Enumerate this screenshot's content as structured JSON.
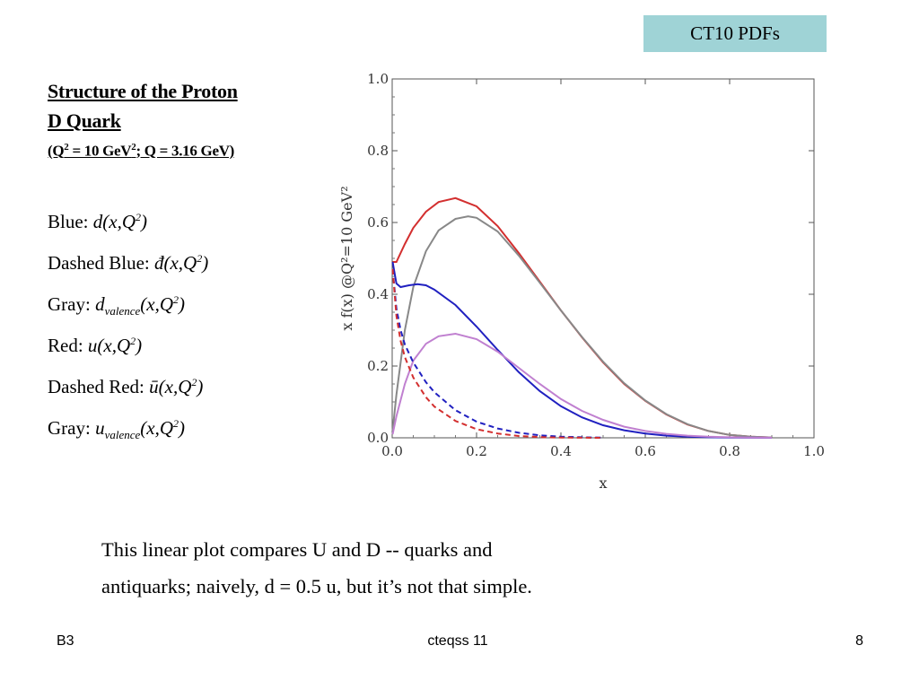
{
  "slide": {
    "tag": "CT10 PDFs",
    "tag_color": "#9fd3d6",
    "heading": {
      "line1": "Structure of the Proton",
      "line2": "D Quark",
      "line3_open": "(Q",
      "line3_sup1": "2",
      "line3_mid": " = 10 GeV",
      "line3_sup2": "2",
      "line3_close": "; Q = 3.16 GeV)"
    },
    "legend": [
      {
        "label": "Blue:",
        "expr": "d(x,Q",
        "sub": "",
        "sup": "2",
        "close": ")"
      },
      {
        "label": "Dashed Blue:",
        "expr": "đ(x,Q",
        "sub": "",
        "sup": "2",
        "close": ")"
      },
      {
        "label": "Gray:",
        "expr": "d",
        "sub": "valence",
        "mid": "(x,Q",
        "sup": "2",
        "close": ")"
      },
      {
        "label": "Red:",
        "expr": "u(x,Q",
        "sub": "",
        "sup": "2",
        "close": ")"
      },
      {
        "label": "Dashed Red:",
        "expr": "ū(x,Q",
        "sub": "",
        "sup": "2",
        "close": ")"
      },
      {
        "label": "Gray:",
        "expr": "u",
        "sub": "valence",
        "mid": "(x,Q",
        "sup": "2",
        "close": ")"
      }
    ],
    "caption": {
      "line1": "This linear plot  compares U and D -- quarks and",
      "line2": "antiquarks; naively, d = 0.5 u, but it’s not that simple."
    },
    "footer": {
      "left": "B3",
      "center": "cteqss 11",
      "right": "8"
    }
  },
  "chart_data": {
    "type": "line",
    "xlabel": "x",
    "ylabel": "x f(x)    @Q²=10 GeV²",
    "xlim": [
      0,
      1
    ],
    "ylim": [
      0,
      1
    ],
    "xticks": [
      "0.0",
      "0.2",
      "0.4",
      "0.6",
      "0.8",
      "1.0"
    ],
    "yticks": [
      "0.0",
      "0.2",
      "0.4",
      "0.6",
      "0.8",
      "1.0"
    ],
    "grid": false,
    "series": [
      {
        "color": "#d32f2f",
        "dash": false,
        "x": [
          0.001,
          0.01,
          0.03,
          0.05,
          0.08,
          0.11,
          0.15,
          0.2,
          0.25,
          0.3,
          0.35,
          0.4,
          0.45,
          0.5,
          0.55,
          0.6,
          0.65,
          0.7,
          0.75,
          0.8,
          0.85,
          0.9
        ],
        "y": [
          0.49,
          0.49,
          0.54,
          0.585,
          0.63,
          0.657,
          0.668,
          0.645,
          0.59,
          0.515,
          0.435,
          0.355,
          0.28,
          0.21,
          0.15,
          0.103,
          0.065,
          0.037,
          0.019,
          0.008,
          0.003,
          0.001
        ]
      },
      {
        "color": "#888888",
        "dash": false,
        "x": [
          0.001,
          0.01,
          0.03,
          0.05,
          0.08,
          0.11,
          0.15,
          0.18,
          0.2,
          0.25,
          0.3,
          0.35,
          0.4,
          0.45,
          0.5,
          0.55,
          0.6,
          0.65,
          0.7,
          0.75,
          0.8,
          0.85,
          0.9
        ],
        "y": [
          0.02,
          0.12,
          0.3,
          0.42,
          0.52,
          0.578,
          0.61,
          0.617,
          0.613,
          0.575,
          0.508,
          0.432,
          0.355,
          0.281,
          0.212,
          0.152,
          0.104,
          0.066,
          0.038,
          0.019,
          0.008,
          0.003,
          0.001
        ]
      },
      {
        "color": "#2020c0",
        "dash": false,
        "x": [
          0.001,
          0.01,
          0.02,
          0.04,
          0.06,
          0.08,
          0.1,
          0.15,
          0.2,
          0.25,
          0.3,
          0.35,
          0.4,
          0.45,
          0.5,
          0.55,
          0.6,
          0.65,
          0.7,
          0.75,
          0.8,
          0.85,
          0.9
        ],
        "y": [
          0.49,
          0.43,
          0.42,
          0.425,
          0.428,
          0.425,
          0.413,
          0.37,
          0.31,
          0.245,
          0.183,
          0.13,
          0.088,
          0.057,
          0.035,
          0.021,
          0.012,
          0.006,
          0.003,
          0.0015,
          0.0007,
          0.0003,
          0.0001
        ]
      },
      {
        "color": "#c080d0",
        "dash": false,
        "x": [
          0.001,
          0.01,
          0.03,
          0.05,
          0.08,
          0.11,
          0.15,
          0.2,
          0.25,
          0.3,
          0.35,
          0.4,
          0.45,
          0.5,
          0.55,
          0.6,
          0.65,
          0.7,
          0.75,
          0.8,
          0.85,
          0.9
        ],
        "y": [
          0.01,
          0.06,
          0.15,
          0.215,
          0.262,
          0.283,
          0.29,
          0.275,
          0.24,
          0.195,
          0.15,
          0.108,
          0.075,
          0.05,
          0.031,
          0.019,
          0.011,
          0.006,
          0.003,
          0.0015,
          0.0007,
          0.0002
        ]
      },
      {
        "color": "#2020c0",
        "dash": true,
        "x": [
          0.001,
          0.01,
          0.02,
          0.03,
          0.05,
          0.08,
          0.1,
          0.15,
          0.2,
          0.25,
          0.3,
          0.35,
          0.4,
          0.45,
          0.5
        ],
        "y": [
          0.47,
          0.36,
          0.3,
          0.26,
          0.21,
          0.155,
          0.127,
          0.077,
          0.045,
          0.026,
          0.014,
          0.007,
          0.003,
          0.0015,
          0.0005
        ]
      },
      {
        "color": "#d32f2f",
        "dash": true,
        "x": [
          0.001,
          0.01,
          0.02,
          0.03,
          0.05,
          0.08,
          0.1,
          0.15,
          0.2,
          0.25,
          0.3,
          0.35,
          0.4,
          0.45,
          0.5
        ],
        "y": [
          0.47,
          0.34,
          0.27,
          0.225,
          0.168,
          0.113,
          0.087,
          0.047,
          0.024,
          0.012,
          0.005,
          0.002,
          0.0008,
          0.0003,
          0.0001
        ]
      }
    ]
  }
}
